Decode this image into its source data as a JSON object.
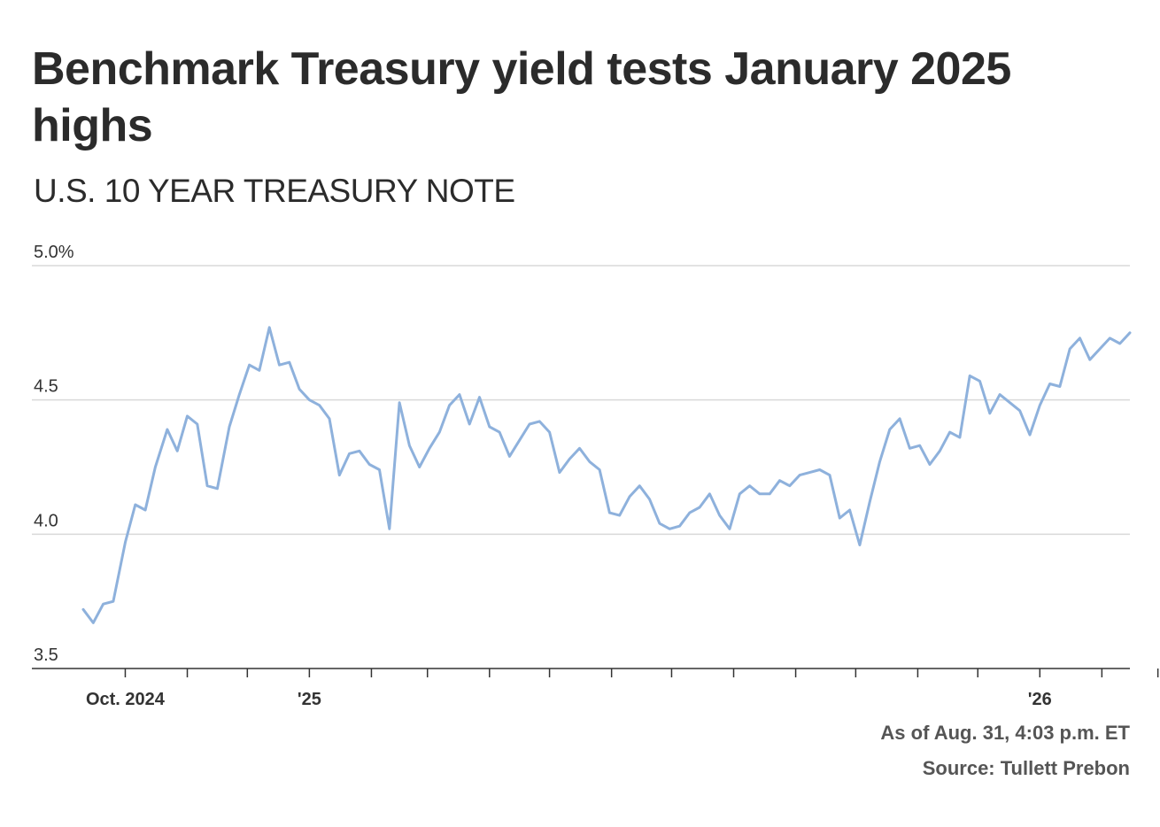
{
  "title": "Benchmark Treasury yield tests January 2025 highs",
  "subtitle": "U.S. 10 YEAR TREASURY NOTE",
  "footer": {
    "as_of": "As of Aug. 31, 4:03 p.m. ET",
    "source": "Source: Tullett Prebon"
  },
  "colors": {
    "line": "#8eb1dc",
    "grid": "#d9d9d9",
    "axis": "#333333"
  },
  "chart_data": {
    "type": "line",
    "title": "Benchmark Treasury yield tests January 2025 highs",
    "subtitle": "U.S. 10 YEAR TREASURY NOTE",
    "xlabel": "",
    "ylabel": "",
    "ylim": [
      3.5,
      5.0
    ],
    "y_ticks": [
      {
        "value": 5.0,
        "label": "5.0%"
      },
      {
        "value": 4.5,
        "label": "4.5"
      },
      {
        "value": 4.0,
        "label": "4.0"
      },
      {
        "value": 3.5,
        "label": "3.5"
      }
    ],
    "x_range": [
      "2024-09-10",
      "2026-08-31"
    ],
    "x_tick_marks": [
      "2024-10-01",
      "2024-11-01",
      "2024-12-01",
      "2025-01-01",
      "2025-02-01",
      "2025-03-01",
      "2025-04-01",
      "2025-05-01",
      "2025-06-01",
      "2025-07-01",
      "2025-08-01",
      "2025-09-01",
      "2025-10-01",
      "2025-11-01",
      "2025-12-01",
      "2026-01-01",
      "2026-02-01",
      "2026-03-01",
      "2026-04-01",
      "2026-05-01",
      "2026-06-01",
      "2026-07-01",
      "2026-08-01"
    ],
    "x_tick_labels": [
      {
        "date": "2024-10-01",
        "label": "Oct. 2024"
      },
      {
        "date": "2025-01-01",
        "label": "'25"
      },
      {
        "date": "2026-01-01",
        "label": "'26"
      }
    ],
    "grid": true,
    "legend": "none",
    "series": [
      {
        "values": [
          [
            "2024-09-10",
            3.72
          ],
          [
            "2024-09-15",
            3.67
          ],
          [
            "2024-09-20",
            3.74
          ],
          [
            "2024-09-25",
            3.75
          ],
          [
            "2024-10-01",
            3.97
          ],
          [
            "2024-10-06",
            4.11
          ],
          [
            "2024-10-11",
            4.09
          ],
          [
            "2024-10-16",
            4.25
          ],
          [
            "2024-10-22",
            4.39
          ],
          [
            "2024-10-27",
            4.31
          ],
          [
            "2024-11-01",
            4.44
          ],
          [
            "2024-11-06",
            4.41
          ],
          [
            "2024-11-11",
            4.18
          ],
          [
            "2024-11-16",
            4.17
          ],
          [
            "2024-11-22",
            4.4
          ],
          [
            "2024-11-27",
            4.52
          ],
          [
            "2024-12-02",
            4.63
          ],
          [
            "2024-12-07",
            4.61
          ],
          [
            "2024-12-12",
            4.77
          ],
          [
            "2024-12-17",
            4.63
          ],
          [
            "2024-12-22",
            4.64
          ],
          [
            "2024-12-27",
            4.54
          ],
          [
            "2025-01-01",
            4.5
          ],
          [
            "2025-01-06",
            4.48
          ],
          [
            "2025-01-11",
            4.43
          ],
          [
            "2025-01-16",
            4.22
          ],
          [
            "2025-01-21",
            4.3
          ],
          [
            "2025-01-26",
            4.31
          ],
          [
            "2025-01-31",
            4.26
          ],
          [
            "2025-02-05",
            4.24
          ],
          [
            "2025-02-10",
            4.02
          ],
          [
            "2025-02-15",
            4.49
          ],
          [
            "2025-02-20",
            4.33
          ],
          [
            "2025-02-25",
            4.25
          ],
          [
            "2025-03-02",
            4.32
          ],
          [
            "2025-03-07",
            4.38
          ],
          [
            "2025-03-12",
            4.48
          ],
          [
            "2025-03-17",
            4.52
          ],
          [
            "2025-03-22",
            4.41
          ],
          [
            "2025-03-27",
            4.51
          ],
          [
            "2025-04-01",
            4.4
          ],
          [
            "2025-04-06",
            4.38
          ],
          [
            "2025-04-11",
            4.29
          ],
          [
            "2025-04-16",
            4.35
          ],
          [
            "2025-04-21",
            4.41
          ],
          [
            "2025-04-26",
            4.42
          ],
          [
            "2025-05-01",
            4.38
          ],
          [
            "2025-05-06",
            4.23
          ],
          [
            "2025-05-11",
            4.28
          ],
          [
            "2025-05-16",
            4.32
          ],
          [
            "2025-05-21",
            4.27
          ],
          [
            "2025-05-26",
            4.24
          ],
          [
            "2025-05-31",
            4.08
          ],
          [
            "2025-06-05",
            4.07
          ],
          [
            "2025-06-10",
            4.14
          ],
          [
            "2025-06-15",
            4.18
          ],
          [
            "2025-06-20",
            4.13
          ],
          [
            "2025-06-25",
            4.04
          ],
          [
            "2025-06-30",
            4.02
          ],
          [
            "2025-07-05",
            4.03
          ],
          [
            "2025-07-10",
            4.08
          ],
          [
            "2025-07-15",
            4.1
          ],
          [
            "2025-07-20",
            4.15
          ],
          [
            "2025-07-25",
            4.07
          ],
          [
            "2025-07-30",
            4.02
          ],
          [
            "2025-08-04",
            4.15
          ],
          [
            "2025-08-09",
            4.18
          ],
          [
            "2025-08-14",
            4.15
          ],
          [
            "2025-08-19",
            4.15
          ],
          [
            "2025-08-24",
            4.2
          ],
          [
            "2025-08-29",
            4.18
          ],
          [
            "2025-09-03",
            4.22
          ],
          [
            "2025-09-08",
            4.23
          ],
          [
            "2025-09-13",
            4.24
          ],
          [
            "2025-09-18",
            4.22
          ],
          [
            "2025-09-23",
            4.06
          ],
          [
            "2025-09-28",
            4.09
          ],
          [
            "2025-10-03",
            3.96
          ],
          [
            "2025-10-08",
            4.12
          ],
          [
            "2025-10-13",
            4.27
          ],
          [
            "2025-10-18",
            4.39
          ],
          [
            "2025-10-23",
            4.43
          ],
          [
            "2025-10-28",
            4.32
          ],
          [
            "2025-11-02",
            4.33
          ],
          [
            "2025-11-07",
            4.26
          ],
          [
            "2025-11-12",
            4.31
          ],
          [
            "2025-11-17",
            4.38
          ],
          [
            "2025-11-22",
            4.36
          ],
          [
            "2025-11-27",
            4.59
          ],
          [
            "2025-12-02",
            4.57
          ],
          [
            "2025-12-07",
            4.45
          ],
          [
            "2025-12-12",
            4.52
          ],
          [
            "2025-12-17",
            4.49
          ],
          [
            "2025-12-22",
            4.46
          ],
          [
            "2025-12-27",
            4.37
          ],
          [
            "2026-01-01",
            4.48
          ],
          [
            "2026-01-06",
            4.56
          ],
          [
            "2026-01-11",
            4.55
          ],
          [
            "2026-01-16",
            4.69
          ],
          [
            "2026-01-21",
            4.73
          ],
          [
            "2026-01-26",
            4.65
          ],
          [
            "2026-01-31",
            4.69
          ],
          [
            "2026-02-05",
            4.73
          ],
          [
            "2026-02-10",
            4.71
          ],
          [
            "2026-02-15",
            4.75
          ]
        ]
      }
    ]
  }
}
